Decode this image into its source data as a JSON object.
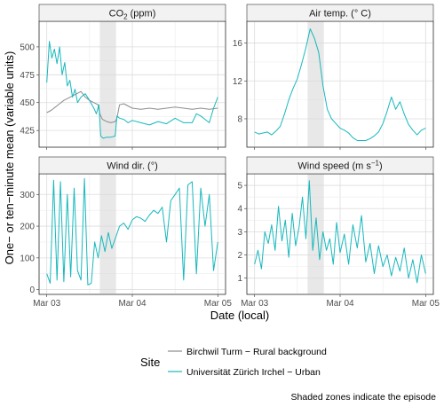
{
  "chart_data": {
    "type": "line",
    "ylabel": "One− or ten−minute mean (variable units)",
    "xlabel": "Date (local)",
    "x_ticks": [
      "Mar 03",
      "Mar 04",
      "Mar 05"
    ],
    "x_range_days": [
      0,
      2
    ],
    "shaded_episode_days": [
      0.62,
      0.81
    ],
    "caption": "Shaded zones indicate the episode",
    "legend": {
      "title": "Site",
      "placement": "bottom",
      "items": [
        {
          "name": "Birchwil Turm − Rural background",
          "color": "#8c8c8c"
        },
        {
          "name": "Universität Zürich Irchel − Urban",
          "color": "#17b8bd"
        }
      ]
    },
    "panels": [
      {
        "id": "co2",
        "title_main": "CO",
        "title_sub": "2",
        "title_rest": " (ppm)",
        "ylim": [
          410,
          523
        ],
        "yticks": [
          425,
          450,
          475,
          500
        ],
        "series": [
          {
            "name": "Birchwil Turm − Rural background",
            "color": "#8c8c8c",
            "x": [
              0,
              0.05,
              0.1,
              0.15,
              0.2,
              0.25,
              0.3,
              0.35,
              0.4,
              0.45,
              0.5,
              0.55,
              0.6,
              0.62,
              0.65,
              0.7,
              0.75,
              0.8,
              0.82,
              0.85,
              0.9,
              0.95,
              1.0,
              1.1,
              1.2,
              1.3,
              1.4,
              1.5,
              1.6,
              1.7,
              1.8,
              1.9,
              2.0
            ],
            "values": [
              441,
              443,
              446,
              449,
              452,
              454,
              456,
              458,
              460,
              455,
              452,
              450,
              448,
              440,
              435,
              433,
              432,
              433,
              436,
              448,
              449,
              447,
              445,
              444,
              445,
              444,
              445,
              446,
              445,
              444,
              445,
              444,
              445
            ]
          },
          {
            "name": "Universität Zürich Irchel − Urban",
            "color": "#17b8bd",
            "x": [
              0,
              0.03,
              0.06,
              0.09,
              0.12,
              0.15,
              0.18,
              0.21,
              0.24,
              0.27,
              0.3,
              0.33,
              0.36,
              0.4,
              0.45,
              0.5,
              0.55,
              0.58,
              0.61,
              0.63,
              0.66,
              0.7,
              0.75,
              0.8,
              0.82,
              0.85,
              0.9,
              0.95,
              1.0,
              1.1,
              1.2,
              1.3,
              1.4,
              1.5,
              1.6,
              1.7,
              1.75,
              1.8,
              1.85,
              1.9,
              1.95,
              2.0
            ],
            "values": [
              468,
              505,
              490,
              498,
              485,
              500,
              475,
              486,
              465,
              470,
              455,
              462,
              450,
              455,
              458,
              452,
              445,
              440,
              448,
              420,
              418,
              419,
              419,
              420,
              438,
              436,
              435,
              432,
              434,
              432,
              430,
              433,
              431,
              436,
              432,
              432,
              440,
              438,
              435,
              432,
              445,
              455
            ]
          }
        ]
      },
      {
        "id": "temp",
        "title_main": "Air temp. (° C)",
        "ylim": [
          5.0,
          18.3
        ],
        "yticks": [
          8,
          12,
          16
        ],
        "series": [
          {
            "name": "Universität Zürich Irchel − Urban",
            "color": "#17b8bd",
            "x": [
              0,
              0.05,
              0.1,
              0.15,
              0.2,
              0.25,
              0.3,
              0.35,
              0.4,
              0.45,
              0.5,
              0.55,
              0.6,
              0.65,
              0.7,
              0.75,
              0.8,
              0.85,
              0.9,
              0.95,
              1.0,
              1.05,
              1.1,
              1.15,
              1.2,
              1.3,
              1.35,
              1.4,
              1.45,
              1.5,
              1.55,
              1.6,
              1.65,
              1.7,
              1.75,
              1.8,
              1.85,
              1.9,
              1.95,
              2.0
            ],
            "values": [
              6.6,
              6.4,
              6.5,
              6.6,
              6.3,
              6.7,
              7.2,
              8.5,
              10.0,
              11.2,
              12.2,
              13.8,
              15.5,
              17.5,
              16.5,
              15.0,
              11.5,
              9.0,
              8.0,
              7.5,
              7.0,
              6.8,
              6.5,
              6.0,
              5.7,
              5.7,
              5.9,
              6.2,
              6.6,
              7.5,
              8.8,
              10.3,
              9.0,
              9.8,
              8.5,
              7.4,
              6.8,
              6.3,
              6.8,
              7.0
            ]
          }
        ]
      },
      {
        "id": "wdir",
        "title_main": "Wind dir. (°)",
        "ylim": [
          -15,
          365
        ],
        "yticks": [
          0,
          100,
          200,
          300
        ],
        "series": [
          {
            "name": "Universität Zürich Irchel − Urban",
            "color": "#17b8bd",
            "x": [
              0,
              0.04,
              0.08,
              0.12,
              0.16,
              0.2,
              0.24,
              0.28,
              0.32,
              0.36,
              0.4,
              0.44,
              0.48,
              0.52,
              0.56,
              0.6,
              0.64,
              0.68,
              0.72,
              0.76,
              0.8,
              0.85,
              0.9,
              0.95,
              1.0,
              1.05,
              1.1,
              1.15,
              1.2,
              1.25,
              1.3,
              1.35,
              1.4,
              1.45,
              1.5,
              1.55,
              1.6,
              1.65,
              1.7,
              1.75,
              1.8,
              1.85,
              1.9,
              1.95,
              2.0
            ],
            "values": [
              50,
              20,
              345,
              30,
              340,
              25,
              300,
              40,
              320,
              60,
              30,
              350,
              15,
              20,
              150,
              100,
              170,
              120,
              180,
              130,
              160,
              200,
              210,
              190,
              220,
              230,
              225,
              215,
              235,
              250,
              240,
              260,
              150,
              280,
              300,
              320,
              30,
              330,
              340,
              50,
              320,
              200,
              300,
              60,
              150
            ]
          }
        ]
      },
      {
        "id": "wspeed",
        "title_main": "Wind speed (m s",
        "title_sup": "−1",
        "title_rest": ")",
        "ylim": [
          0.3,
          5.5
        ],
        "yticks": [
          1,
          2,
          3,
          4,
          5
        ],
        "series": [
          {
            "name": "Universität Zürich Irchel − Urban",
            "color": "#17b8bd",
            "x": [
              0,
              0.04,
              0.08,
              0.12,
              0.16,
              0.2,
              0.24,
              0.28,
              0.32,
              0.36,
              0.4,
              0.44,
              0.48,
              0.52,
              0.56,
              0.6,
              0.64,
              0.68,
              0.72,
              0.76,
              0.8,
              0.84,
              0.88,
              0.92,
              0.96,
              1.0,
              1.05,
              1.1,
              1.15,
              1.2,
              1.25,
              1.3,
              1.35,
              1.4,
              1.45,
              1.5,
              1.55,
              1.6,
              1.65,
              1.7,
              1.75,
              1.8,
              1.85,
              1.9,
              1.95,
              2.0
            ],
            "values": [
              1.6,
              2.2,
              1.4,
              3.0,
              2.5,
              3.3,
              2.2,
              4.1,
              2.6,
              3.5,
              1.9,
              3.8,
              2.4,
              3.2,
              4.5,
              2.7,
              5.2,
              2.2,
              3.6,
              1.8,
              3.0,
              2.2,
              2.7,
              1.6,
              3.4,
              2.1,
              2.9,
              1.6,
              3.3,
              2.3,
              3.7,
              1.7,
              2.5,
              1.2,
              2.4,
              1.5,
              2.0,
              1.1,
              1.9,
              1.3,
              2.3,
              1.0,
              1.8,
              0.8,
              2.0,
              1.2
            ]
          }
        ]
      }
    ]
  }
}
